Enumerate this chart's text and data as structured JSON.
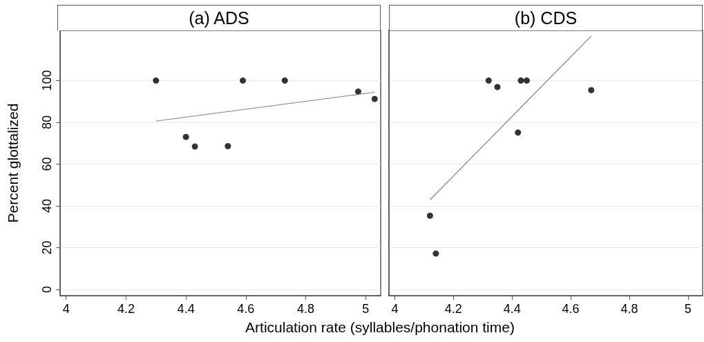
{
  "chart_data": [
    {
      "type": "scatter",
      "title": "(a) ADS",
      "xlabel": "Articulation rate (syllables/phonation time)",
      "ylabel": "Percent glottalized",
      "xlim": [
        3.98,
        5.05
      ],
      "xticks": [
        4,
        4.2,
        4.4,
        4.6,
        4.8,
        5
      ],
      "ylim": [
        -3,
        124
      ],
      "yticks": [
        0,
        20,
        40,
        60,
        80,
        100
      ],
      "grid": "y",
      "series": [
        {
          "color": "#000000",
          "marker": "circle",
          "x": [
            4.3,
            4.4,
            4.43,
            4.54,
            4.59,
            4.73,
            4.975,
            5.03
          ],
          "values": [
            100,
            73,
            68.4,
            68.6,
            100,
            100,
            94.7,
            91.2
          ]
        },
        {
          "type": "line",
          "color": "#808080",
          "marker": "none",
          "x": [
            4.3,
            5.03
          ],
          "values": [
            80.6,
            94.4
          ]
        }
      ]
    },
    {
      "type": "scatter",
      "title": "(b) CDS",
      "xlim": [
        3.98,
        5.05
      ],
      "xticks": [
        4,
        4.2,
        4.4,
        4.6,
        4.8,
        5
      ],
      "ylim": [
        -3,
        124
      ],
      "yticks": [
        0,
        20,
        40,
        60,
        80,
        100
      ],
      "grid": "y",
      "tick_labels": "x",
      "series": [
        {
          "color": "#000000",
          "marker": "circle",
          "x": [
            4.12,
            4.14,
            4.32,
            4.35,
            4.42,
            4.43,
            4.45,
            4.67
          ],
          "values": [
            35.3,
            17.2,
            100,
            96.9,
            75.1,
            100,
            100,
            95.4
          ]
        },
        {
          "type": "line",
          "color": "#808080",
          "marker": "none",
          "x": [
            4.12,
            4.67
          ],
          "values": [
            42.9,
            121.3
          ]
        }
      ]
    }
  ]
}
